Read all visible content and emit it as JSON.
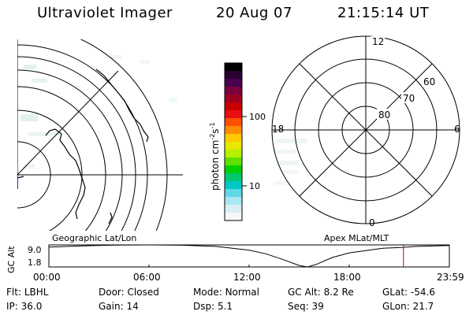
{
  "header": {
    "instrument": "Ultraviolet Imager",
    "date": "20 Aug 07",
    "time": "21:15:14 UT"
  },
  "panels": {
    "left_caption": "Geographic Lat/Lon",
    "right_caption": "Apex MLat/MLT"
  },
  "colorbar": {
    "label_main": "photon cm",
    "label_exp1": "-2",
    "label_s": "s",
    "label_exp2": "-1",
    "ticks": [
      "100",
      "10"
    ],
    "colors": [
      "#000000",
      "#2a0033",
      "#4a0050",
      "#7a0040",
      "#a00020",
      "#c80000",
      "#e81010",
      "#ff5000",
      "#ff8c00",
      "#ffc800",
      "#e8e800",
      "#b4f000",
      "#60e000",
      "#00d000",
      "#00c870",
      "#00c8c8",
      "#60d8e8",
      "#a8e8f0",
      "#d8f0f4",
      "#f4f8f8"
    ]
  },
  "polar": {
    "lat_labels": [
      "80",
      "70",
      "60"
    ],
    "mlt_labels": [
      "12",
      "18",
      "6",
      "0"
    ]
  },
  "timeline": {
    "ylabel": "GC Alt",
    "ytop": "9.0",
    "ybot": "1.8",
    "xticks": [
      "00:00",
      "06:00",
      "12:00",
      "18:00",
      "23:59"
    ]
  },
  "status": {
    "row1": [
      {
        "label": "Flt:",
        "value": "LBHL"
      },
      {
        "label": "Door:",
        "value": "Closed"
      },
      {
        "label": "Mode:",
        "value": "Normal"
      },
      {
        "label": "GC Alt:",
        "value": "8.2 Re"
      },
      {
        "label": "GLat:",
        "value": "-54.6"
      }
    ],
    "row2": [
      {
        "label": "IP:",
        "value": "36.0"
      },
      {
        "label": "Gain:",
        "value": "14"
      },
      {
        "label": "Dsp:",
        "value": "5.1"
      },
      {
        "label": "Seq:",
        "value": "39"
      },
      {
        "label": "GLon:",
        "value": "21.7"
      }
    ]
  },
  "chart_data": {
    "type": "line",
    "title": "",
    "xlabel": "",
    "ylabel": "GC Alt",
    "xlim": [
      0,
      24
    ],
    "ylim": [
      1.8,
      9.0
    ],
    "x": [
      0,
      2,
      4,
      6,
      8,
      10,
      12,
      13,
      14,
      15,
      15.5,
      16,
      17,
      18,
      20,
      21.25,
      22,
      24
    ],
    "series": [
      {
        "values": [
          8.3,
          8.7,
          8.95,
          9.0,
          8.9,
          8.5,
          7.3,
          6.1,
          4.3,
          2.3,
          1.8,
          2.6,
          4.9,
          6.4,
          7.9,
          8.2,
          8.5,
          8.8
        ]
      }
    ],
    "current_time": 21.25,
    "marker_color": "#cc0000"
  }
}
